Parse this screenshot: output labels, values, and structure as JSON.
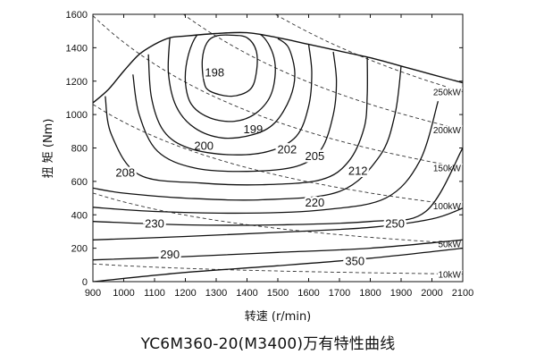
{
  "caption": "YC6M360-20(M3400)万有特性曲线",
  "chart_data": {
    "type": "contour",
    "title": "YC6M360-20(M3400)万有特性曲线",
    "xlabel": "转速  (r/min)",
    "ylabel": "扭 矩  (Nm)",
    "xlim": [
      900,
      2100
    ],
    "ylim": [
      0,
      1600
    ],
    "xticks": [
      900,
      1000,
      1100,
      1200,
      1300,
      1400,
      1500,
      1600,
      1700,
      1800,
      1900,
      2000,
      2100
    ],
    "yticks": [
      0,
      200,
      400,
      600,
      800,
      1000,
      1200,
      1400,
      1600
    ],
    "grid": false,
    "legend": "none",
    "line_color": "#111111",
    "max_torque_curve": {
      "x": [
        900,
        950,
        1000,
        1050,
        1100,
        1150,
        1200,
        1300,
        1400,
        1500,
        1600,
        1700,
        1800,
        1900,
        2000,
        2100
      ],
      "y": [
        1070,
        1150,
        1260,
        1360,
        1420,
        1460,
        1470,
        1485,
        1490,
        1460,
        1420,
        1380,
        1340,
        1290,
        1240,
        1190
      ]
    },
    "bsfc_contours": [
      {
        "value": "198",
        "label_at": [
          1295,
          1250
        ],
        "closed": true,
        "x": [
          1270,
          1300,
          1350,
          1400,
          1430,
          1430,
          1410,
          1350,
          1280,
          1260,
          1255,
          1270
        ],
        "y": [
          1430,
          1470,
          1475,
          1460,
          1380,
          1250,
          1150,
          1110,
          1140,
          1200,
          1330,
          1430
        ]
      },
      {
        "value": "199",
        "label_at": [
          1420,
          910
        ],
        "closed": true,
        "x": [
          1240,
          1280,
          1380,
          1450,
          1490,
          1480,
          1430,
          1360,
          1280,
          1220,
          1200,
          1210,
          1240
        ],
        "y": [
          1480,
          1500,
          1510,
          1470,
          1320,
          1130,
          1010,
          960,
          980,
          1060,
          1200,
          1360,
          1480
        ]
      },
      {
        "value": "200",
        "label_at": [
          1260,
          810
        ],
        "closed": false,
        "x": [
          1150,
          1145,
          1170,
          1230,
          1320,
          1420,
          1490,
          1540,
          1555,
          1535,
          1500
        ],
        "y": [
          1470,
          1250,
          1050,
          920,
          860,
          880,
          950,
          1100,
          1250,
          1400,
          1455
        ]
      },
      {
        "value": "202",
        "label_at": [
          1530,
          790
        ],
        "closed": false,
        "x": [
          1080,
          1090,
          1130,
          1210,
          1340,
          1470,
          1560,
          1600,
          1610,
          1600
        ],
        "y": [
          1360,
          1100,
          900,
          800,
          760,
          780,
          870,
          1050,
          1250,
          1420
        ]
      },
      {
        "value": "205",
        "label_at": [
          1620,
          750
        ],
        "closed": false,
        "x": [
          1030,
          1050,
          1110,
          1230,
          1400,
          1560,
          1640,
          1680,
          1690,
          1680
        ],
        "y": [
          1240,
          1000,
          780,
          680,
          660,
          690,
          790,
          1000,
          1200,
          1375
        ]
      },
      {
        "value": "208",
        "label_at": [
          1005,
          650
        ],
        "closed": false,
        "x": [
          940,
          960,
          1050,
          1250,
          1450,
          1640,
          1730,
          1780,
          1790,
          1790
        ],
        "y": [
          1110,
          880,
          640,
          590,
          580,
          610,
          720,
          920,
          1120,
          1345
        ]
      },
      {
        "value": "212",
        "label_at": [
          1760,
          660
        ],
        "closed": false,
        "x": [
          900,
          1000,
          1200,
          1450,
          1700,
          1830,
          1880,
          1900
        ],
        "y": [
          560,
          530,
          500,
          490,
          540,
          750,
          1000,
          1290
        ]
      },
      {
        "value": "220",
        "label_at": [
          1620,
          470
        ],
        "closed": false,
        "x": [
          900,
          1100,
          1400,
          1650,
          1850,
          1960,
          2020
        ],
        "y": [
          445,
          420,
          410,
          430,
          500,
          720,
          1080
        ]
      },
      {
        "value": "230",
        "label_at": [
          1100,
          345
        ],
        "closed": false,
        "x": [
          900,
          1200,
          1500,
          1800,
          1980,
          2100
        ],
        "y": [
          360,
          340,
          340,
          360,
          420,
          800
        ]
      },
      {
        "value": "250",
        "label_at": [
          1880,
          345
        ],
        "closed": false,
        "x": [
          900,
          1200,
          1500,
          1800,
          2000,
          2100
        ],
        "y": [
          250,
          270,
          295,
          325,
          375,
          440
        ]
      },
      {
        "value": "290",
        "label_at": [
          1150,
          160
        ],
        "closed": false,
        "x": [
          900,
          1200,
          1500,
          1800,
          2100
        ],
        "y": [
          130,
          150,
          175,
          200,
          250
        ]
      },
      {
        "value": "350",
        "label_at": [
          1750,
          120
        ],
        "closed": false,
        "x": [
          900,
          1200,
          1500,
          1800,
          2100
        ],
        "y": [
          0,
          55,
          95,
          140,
          200
        ]
      }
    ],
    "power_lines": [
      {
        "label": "250kW",
        "power_kw": 250
      },
      {
        "label": "200kW",
        "power_kw": 200
      },
      {
        "label": "150kW",
        "power_kw": 150
      },
      {
        "label": "100kW",
        "power_kw": 100
      },
      {
        "label": "50kW",
        "power_kw": 50
      },
      {
        "label": "10kW",
        "power_kw": 10
      }
    ]
  }
}
